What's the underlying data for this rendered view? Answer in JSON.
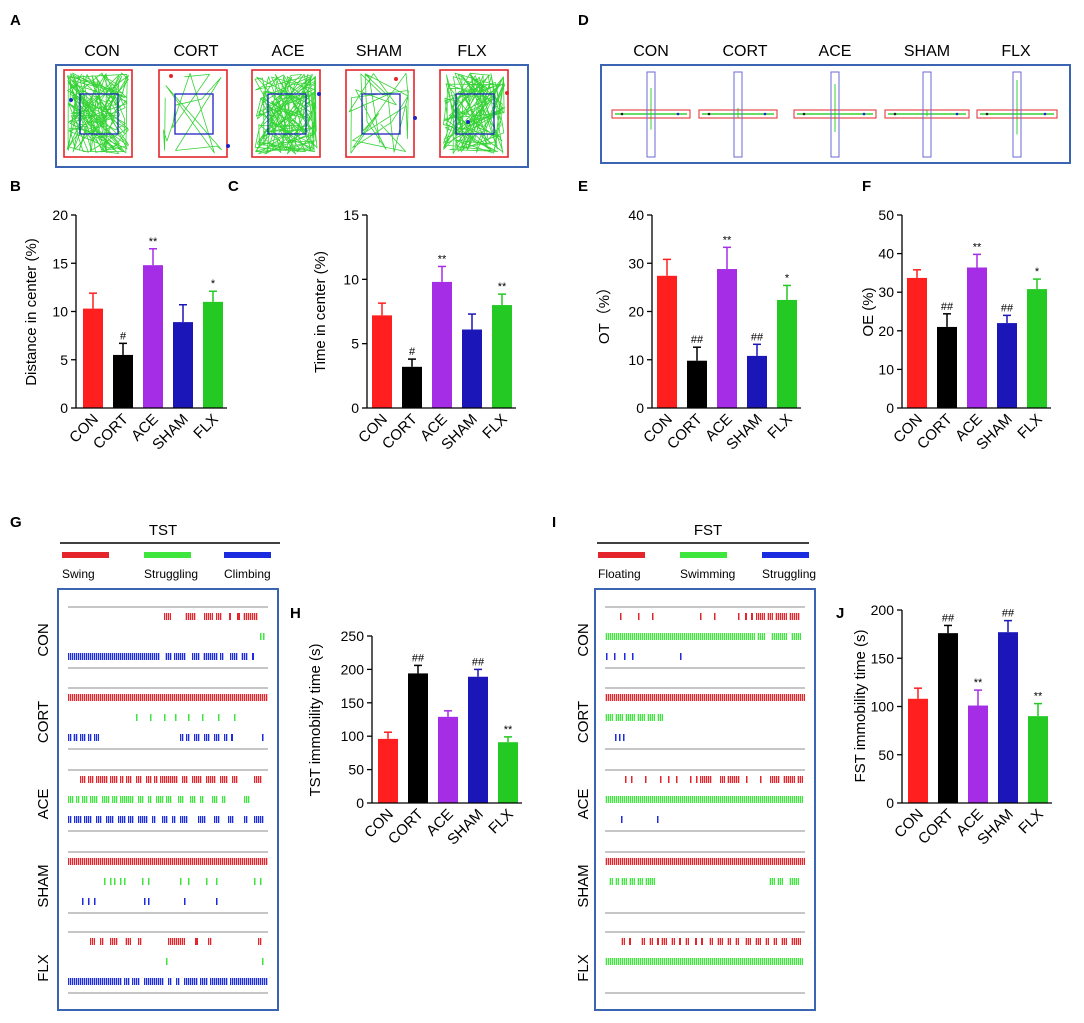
{
  "open_field": {
    "letter": "A",
    "groups": [
      "CON",
      "CORT",
      "ACE",
      "SHAM",
      "FLX"
    ]
  },
  "epm": {
    "letter": "D",
    "groups": [
      "CON",
      "CORT",
      "ACE",
      "SHAM",
      "FLX"
    ]
  },
  "tst": {
    "letter": "G",
    "title": "TST",
    "legend": [
      {
        "label": "Swing",
        "color": "#e4262c"
      },
      {
        "label": "Struggling",
        "color": "#3ee63e"
      },
      {
        "label": "Climbing",
        "color": "#1b2bdf"
      }
    ],
    "rows": [
      "CON",
      "CORT",
      "ACE",
      "SHAM",
      "FLX"
    ]
  },
  "fst": {
    "letter": "I",
    "title": "FST",
    "legend": [
      {
        "label": "Floating",
        "color": "#e4262c"
      },
      {
        "label": "Swimming",
        "color": "#3ee63e"
      },
      {
        "label": "Struggling",
        "color": "#1b2bdf"
      }
    ],
    "rows": [
      "CON",
      "CORT",
      "ACE",
      "SHAM",
      "FLX"
    ]
  },
  "colors": {
    "frame": "#3b65b3",
    "arena": "#e3262b",
    "center_zone": "#1f24c4",
    "track": "#35d335",
    "closed_arm": "#6a6ad4",
    "divider": "#8c8c8c",
    "axis": "#000000"
  },
  "chart_data": [
    {
      "letter": "B",
      "type": "bar",
      "ylabel": "Distance in center (%)",
      "categories": [
        "CON",
        "CORT",
        "ACE",
        "SHAM",
        "FLX"
      ],
      "values": [
        10.3,
        5.5,
        14.8,
        8.9,
        11.0
      ],
      "errors": [
        1.6,
        1.2,
        1.7,
        1.8,
        1.1
      ],
      "significance": [
        "",
        "#",
        "**",
        "",
        "*"
      ],
      "ylim": [
        0,
        20
      ],
      "yticks": [
        0,
        5,
        10,
        15,
        20
      ],
      "bar_colors": [
        "#ff1f1f",
        "#000000",
        "#a52de6",
        "#1a16b8",
        "#24c924"
      ]
    },
    {
      "letter": "C",
      "type": "bar",
      "ylabel": "Time in center (%)",
      "categories": [
        "CON",
        "CORT",
        "ACE",
        "SHAM",
        "FLX"
      ],
      "values": [
        7.2,
        3.2,
        9.8,
        6.1,
        8.0
      ],
      "errors": [
        0.95,
        0.6,
        1.2,
        1.2,
        0.85
      ],
      "significance": [
        "",
        "#",
        "**",
        "",
        "**"
      ],
      "ylim": [
        0,
        15
      ],
      "yticks": [
        0,
        5,
        10,
        15
      ],
      "bar_colors": [
        "#ff1f1f",
        "#000000",
        "#a52de6",
        "#1a16b8",
        "#24c924"
      ]
    },
    {
      "letter": "E",
      "type": "bar",
      "ylabel": "OT（%）",
      "categories": [
        "CON",
        "CORT",
        "ACE",
        "SHAM",
        "FLX"
      ],
      "values": [
        27.4,
        9.8,
        28.8,
        10.8,
        22.4
      ],
      "errors": [
        3.4,
        2.8,
        4.5,
        2.4,
        3.0
      ],
      "significance": [
        "",
        "##",
        "**",
        "##",
        "*"
      ],
      "ylim": [
        0,
        40
      ],
      "yticks": [
        0,
        10,
        20,
        30,
        40
      ],
      "bar_colors": [
        "#ff1f1f",
        "#000000",
        "#a52de6",
        "#1a16b8",
        "#24c924"
      ]
    },
    {
      "letter": "F",
      "type": "bar",
      "ylabel": "OE (%)",
      "categories": [
        "CON",
        "CORT",
        "ACE",
        "SHAM",
        "FLX"
      ],
      "values": [
        33.7,
        21.0,
        36.4,
        22.0,
        30.8
      ],
      "errors": [
        2.1,
        3.4,
        3.4,
        2.0,
        2.6
      ],
      "significance": [
        "",
        "##",
        "**",
        "##",
        "*"
      ],
      "ylim": [
        0,
        50
      ],
      "yticks": [
        0,
        10,
        20,
        30,
        40,
        50
      ],
      "bar_colors": [
        "#ff1f1f",
        "#000000",
        "#a52de6",
        "#1a16b8",
        "#24c924"
      ]
    },
    {
      "letter": "H",
      "type": "bar",
      "ylabel": "TST immobility time (s)",
      "categories": [
        "CON",
        "CORT",
        "ACE",
        "SHAM",
        "FLX"
      ],
      "values": [
        96,
        194,
        129,
        189,
        91
      ],
      "errors": [
        10,
        12,
        9,
        11,
        8
      ],
      "significance": [
        "",
        "##",
        "",
        "##",
        "**"
      ],
      "ylim": [
        0,
        250
      ],
      "yticks": [
        0,
        50,
        100,
        150,
        200,
        250
      ],
      "bar_colors": [
        "#ff1f1f",
        "#000000",
        "#a52de6",
        "#1a16b8",
        "#24c924"
      ]
    },
    {
      "letter": "J",
      "type": "bar",
      "ylabel": "FST immobility time (s)",
      "categories": [
        "CON",
        "CORT",
        "ACE",
        "SHAM",
        "FLX"
      ],
      "values": [
        108,
        176,
        101,
        177,
        90
      ],
      "errors": [
        11,
        8,
        16,
        12,
        13
      ],
      "significance": [
        "",
        "##",
        "**",
        "##",
        "**"
      ],
      "ylim": [
        0,
        200
      ],
      "yticks": [
        0,
        50,
        100,
        150,
        200
      ],
      "bar_colors": [
        "#ff1f1f",
        "#000000",
        "#a52de6",
        "#1a16b8",
        "#24c924"
      ]
    }
  ]
}
